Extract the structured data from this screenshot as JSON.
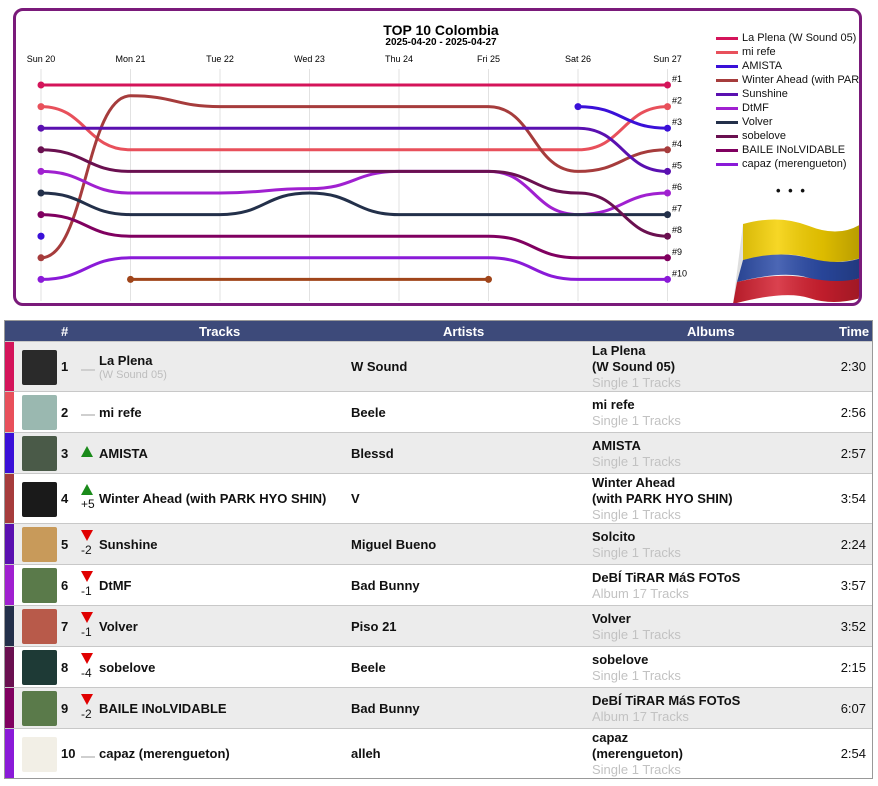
{
  "chart_data": {
    "type": "line",
    "title": "TOP 10 Colombia",
    "subtitle": "2025-04-20 - 2025-04-27",
    "x": [
      "Sun 20",
      "Mon 21",
      "Tue 22",
      "Wed 23",
      "Thu 24",
      "Fri 25",
      "Sat 26",
      "Sun 27"
    ],
    "y_ticks": [
      "#1",
      "#2",
      "#3",
      "#4",
      "#5",
      "#6",
      "#7",
      "#8",
      "#9",
      "#10"
    ],
    "grid": true,
    "legend_position": "right",
    "legend_more": "• • •",
    "series": [
      {
        "name": "La Plena (W Sound 05)",
        "color": "#d4145a",
        "ranks": [
          1,
          1,
          1,
          1,
          1,
          1,
          1,
          1
        ]
      },
      {
        "name": "mi refe",
        "color": "#e8505b",
        "ranks": [
          2,
          4,
          4,
          4,
          4,
          4,
          4,
          2
        ]
      },
      {
        "name": "AMISTA",
        "color": "#3a10d8",
        "ranks": [
          8,
          null,
          null,
          null,
          null,
          null,
          2,
          3
        ]
      },
      {
        "name": "Winter Ahead (with PARK…",
        "color": "#a63c3c",
        "ranks": [
          9,
          1.5,
          2,
          2,
          2,
          2,
          5,
          4
        ]
      },
      {
        "name": "Sunshine",
        "color": "#5a10b0",
        "ranks": [
          3,
          3,
          3,
          3,
          3,
          3,
          3,
          5
        ]
      },
      {
        "name": "DtMF",
        "color": "#a020d0",
        "ranks": [
          5,
          6,
          6,
          5.8,
          5,
          5,
          7,
          6
        ]
      },
      {
        "name": "Volver",
        "color": "#23304a",
        "ranks": [
          6,
          7,
          7,
          6,
          7,
          7,
          7,
          7
        ]
      },
      {
        "name": "sobelove",
        "color": "#6a1050",
        "ranks": [
          4,
          5,
          5,
          5,
          5,
          5,
          6,
          8
        ]
      },
      {
        "name": "BAILE INoLVIDABLE",
        "color": "#800060",
        "ranks": [
          7,
          8,
          8,
          8,
          8,
          8,
          9,
          9
        ]
      },
      {
        "name": "capaz (merengueton)",
        "color": "#8a1ad8",
        "ranks": [
          10,
          9,
          9,
          9,
          9,
          9,
          10,
          10
        ]
      },
      {
        "name": "",
        "color": "#a0451a",
        "ranks": [
          null,
          10,
          10,
          10,
          10,
          10,
          null,
          null
        ],
        "legend": false
      }
    ]
  },
  "table": {
    "headers": {
      "rank": "#",
      "tracks": "Tracks",
      "artists": "Artists",
      "albums": "Albums",
      "time": "Time"
    },
    "rows": [
      {
        "rank": "1",
        "move": "same",
        "move_value": "",
        "title": "La Plena",
        "subtitle": "(W Sound 05)",
        "artist": "W Sound",
        "album_lines": [
          "La Plena",
          "(W Sound 05)"
        ],
        "album_tracks": "Single 1 Tracks",
        "time": "2:30",
        "color": "#d4145a",
        "cover": "#2a2a2a",
        "height": 50
      },
      {
        "rank": "2",
        "move": "same",
        "move_value": "",
        "title": "mi refe",
        "subtitle": "",
        "artist": "Beele",
        "album_lines": [
          "mi refe"
        ],
        "album_tracks": "Single 1 Tracks",
        "time": "2:56",
        "color": "#e8505b",
        "cover": "#9ab8b0",
        "height": 41
      },
      {
        "rank": "3",
        "move": "up",
        "move_value": "",
        "title": "AMISTA",
        "subtitle": "",
        "artist": "Blessd",
        "album_lines": [
          "AMISTA"
        ],
        "album_tracks": "Single 1 Tracks",
        "time": "2:57",
        "color": "#3a10d8",
        "cover": "#4a5a48",
        "height": 41
      },
      {
        "rank": "4",
        "move": "up",
        "move_value": "+5",
        "title": "Winter Ahead (with PARK HYO SHIN)",
        "subtitle": "",
        "artist": "V",
        "album_lines": [
          "Winter Ahead",
          "(with PARK HYO SHIN)"
        ],
        "album_tracks": "Single 1 Tracks",
        "time": "3:54",
        "color": "#a63c3c",
        "cover": "#1a1a1a",
        "height": 50
      },
      {
        "rank": "5",
        "move": "down",
        "move_value": "-2",
        "title": "Sunshine",
        "subtitle": "",
        "artist": "Miguel Bueno",
        "album_lines": [
          "Solcito"
        ],
        "album_tracks": "Single 1 Tracks",
        "time": "2:24",
        "color": "#5a10b0",
        "cover": "#c89a5a",
        "height": 41
      },
      {
        "rank": "6",
        "move": "down",
        "move_value": "-1",
        "title": "DtMF",
        "subtitle": "",
        "artist": "Bad Bunny",
        "album_lines": [
          "DeBÍ TiRAR MáS FOToS"
        ],
        "album_tracks": "Album 17 Tracks",
        "time": "3:57",
        "color": "#a020d0",
        "cover": "#5a7a4a",
        "height": 41
      },
      {
        "rank": "7",
        "move": "down",
        "move_value": "-1",
        "title": "Volver",
        "subtitle": "",
        "artist": "Piso 21",
        "album_lines": [
          "Volver"
        ],
        "album_tracks": "Single 1 Tracks",
        "time": "3:52",
        "color": "#23304a",
        "cover": "#b85a4a",
        "height": 41
      },
      {
        "rank": "8",
        "move": "down",
        "move_value": "-4",
        "title": "sobelove",
        "subtitle": "",
        "artist": "Beele",
        "album_lines": [
          "sobelove"
        ],
        "album_tracks": "Single 1 Tracks",
        "time": "2:15",
        "color": "#6a1050",
        "cover": "#1e3a36",
        "height": 41
      },
      {
        "rank": "9",
        "move": "down",
        "move_value": "-2",
        "title": "BAILE INoLVIDABLE",
        "subtitle": "",
        "artist": "Bad Bunny",
        "album_lines": [
          "DeBÍ TiRAR MáS FOToS"
        ],
        "album_tracks": "Album 17 Tracks",
        "time": "6:07",
        "color": "#800060",
        "cover": "#5a7a4a",
        "height": 41
      },
      {
        "rank": "10",
        "move": "same",
        "move_value": "",
        "title": "capaz (merengueton)",
        "subtitle": "",
        "artist": "alleh",
        "album_lines": [
          "capaz",
          "(merengueton)"
        ],
        "album_tracks": "Single 1 Tracks",
        "time": "2:54",
        "color": "#8a1ad8",
        "cover": "#f2efe6",
        "height": 50
      }
    ]
  },
  "flag": {
    "colors": [
      "#f5d000",
      "#2c4ca8",
      "#d42030"
    ]
  }
}
